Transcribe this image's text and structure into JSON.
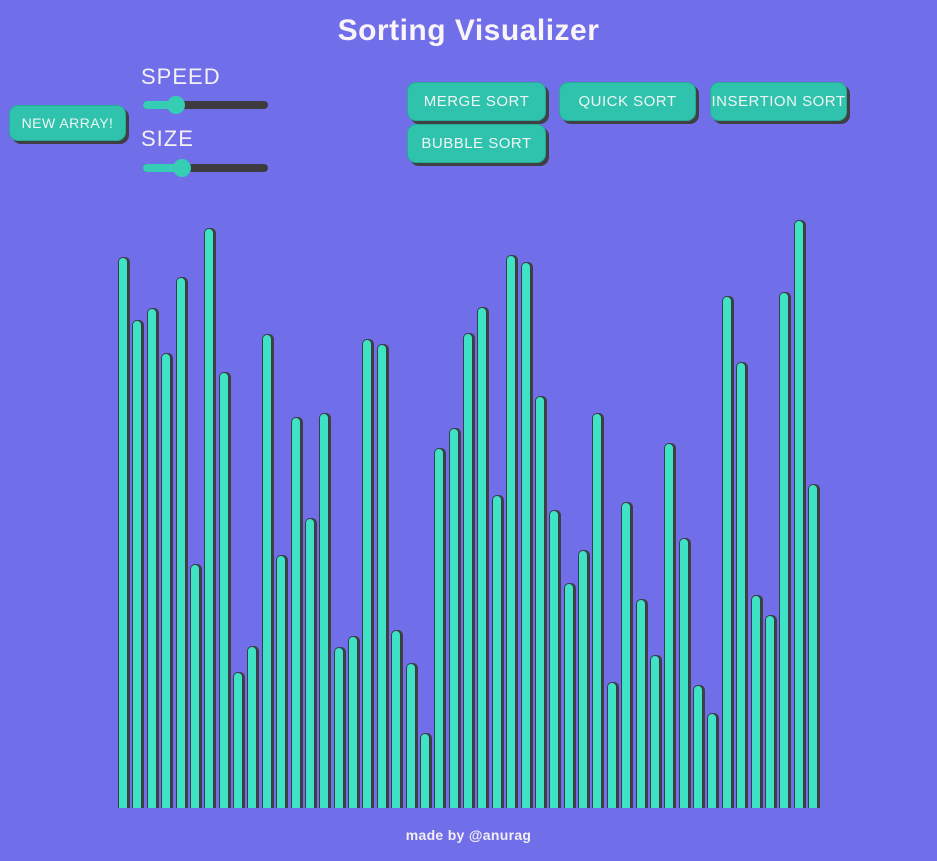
{
  "app": {
    "title": "Sorting Visualizer",
    "footer_credit": "made by @anurag"
  },
  "controls": {
    "new_array_label": "NEW ARRAY!",
    "speed": {
      "label": "SPEED",
      "percent": 26
    },
    "size": {
      "label": "SIZE",
      "percent": 31
    },
    "sort_buttons": {
      "merge": "MERGE SORT",
      "quick": "QUICK SORT",
      "insertion": "INSERTION SORT",
      "bubble": "BUBBLE SORT"
    }
  },
  "colors": {
    "background": "#716eea",
    "bar_fill": "#3ee3c5",
    "button_fill": "#2fc3ad",
    "slider_accent": "#35cdb4",
    "slider_track": "#3b3b40",
    "shadow": "#3f3f46",
    "text": "#f8f4f8"
  },
  "chart_data": {
    "type": "bar",
    "title": "",
    "xlabel": "",
    "ylabel": "",
    "unit": "px",
    "ylim": [
      0,
      600
    ],
    "grid": false,
    "values": [
      551,
      488,
      500,
      455,
      531,
      244,
      580,
      436,
      136,
      162,
      474,
      253,
      391,
      290,
      395,
      161,
      172,
      469,
      464,
      178,
      145,
      75,
      360,
      380,
      475,
      501,
      313,
      553,
      546,
      412,
      298,
      225,
      258,
      395,
      126,
      306,
      209,
      153,
      365,
      270,
      123,
      95,
      512,
      446,
      213,
      193,
      516,
      588,
      324
    ]
  }
}
